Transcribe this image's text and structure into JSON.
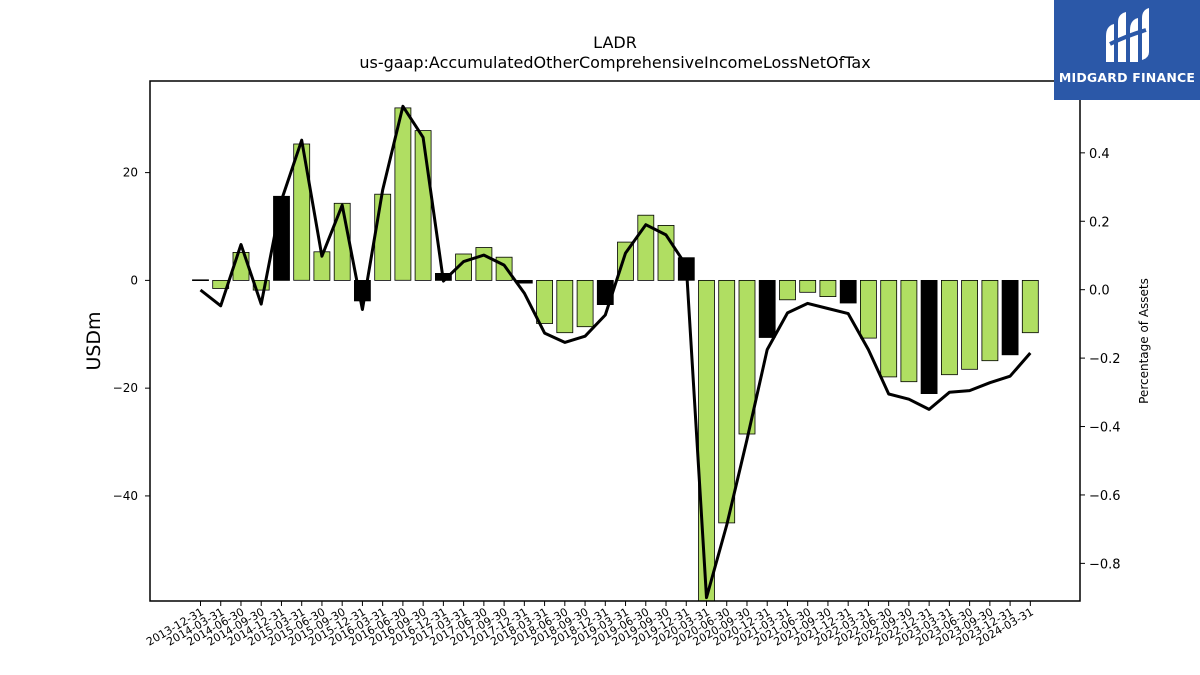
{
  "logo": {
    "text": "MIDGARD FINANCE"
  },
  "chart_data": {
    "type": "bar",
    "title": "LADR",
    "subtitle": "us-gaap:AccumulatedOtherComprehensiveIncomeLossNetOfTax",
    "ylabel": "USDm",
    "y2label": "Percentage of Assets",
    "ylim": [
      -59.5,
      37.0
    ],
    "y2lim": [
      -0.91,
      0.61
    ],
    "yticks": [
      20,
      0,
      -20,
      -40
    ],
    "y2ticks": [
      0.4,
      0.2,
      0.0,
      -0.2,
      -0.4,
      -0.6,
      -0.8
    ],
    "ytick_labels": [
      "20",
      "0",
      "−20",
      "−40"
    ],
    "y2tick_labels": [
      "0.4",
      "0.2",
      "0.0",
      "−0.2",
      "−0.4",
      "−0.6",
      "−0.8"
    ],
    "categories": [
      "2013-12-31",
      "2014-03-31",
      "2014-06-30",
      "2014-09-30",
      "2014-12-31",
      "2015-03-31",
      "2015-06-30",
      "2015-09-30",
      "2015-12-31",
      "2016-03-31",
      "2016-06-30",
      "2016-09-30",
      "2016-12-31",
      "2017-03-31",
      "2017-06-30",
      "2017-09-30",
      "2017-12-31",
      "2018-03-31",
      "2018-06-30",
      "2018-09-30",
      "2018-12-31",
      "2019-03-31",
      "2019-06-30",
      "2019-09-30",
      "2019-12-31",
      "2020-03-31",
      "2020-06-30",
      "2020-09-30",
      "2020-12-31",
      "2021-03-31",
      "2021-06-30",
      "2021-09-30",
      "2021-12-31",
      "2022-03-31",
      "2022-06-30",
      "2022-09-30",
      "2022-12-31",
      "2023-03-31",
      "2023-06-30",
      "2023-09-30",
      "2023-12-31",
      "2024-03-31"
    ],
    "series": [
      {
        "values": [
          0.1,
          -1.5,
          5.2,
          -1.8,
          15.6,
          25.3,
          5.3,
          14.3,
          -3.8,
          16.0,
          32.0,
          27.8,
          1.3,
          4.9,
          6.1,
          4.3,
          -0.5,
          -8.0,
          -9.7,
          -8.6,
          -4.5,
          7.1,
          12.1,
          10.2,
          4.2,
          -60.0,
          -45.0,
          -28.5,
          -10.6,
          -3.6,
          -2.2,
          -3.0,
          -4.2,
          -10.7,
          -17.9,
          -18.8,
          -21.0,
          -17.5,
          -16.5,
          -14.9,
          -13.8,
          -9.7
        ],
        "colors": [
          "#000000",
          "#b0de62",
          "#b0de62",
          "#b0de62",
          "#000000",
          "#b0de62",
          "#b0de62",
          "#b0de62",
          "#000000",
          "#b0de62",
          "#b0de62",
          "#b0de62",
          "#000000",
          "#b0de62",
          "#b0de62",
          "#b0de62",
          "#000000",
          "#b0de62",
          "#b0de62",
          "#b0de62",
          "#000000",
          "#b0de62",
          "#b0de62",
          "#b0de62",
          "#000000",
          "#b0de62",
          "#b0de62",
          "#b0de62",
          "#000000",
          "#b0de62",
          "#b0de62",
          "#b0de62",
          "#000000",
          "#b0de62",
          "#b0de62",
          "#b0de62",
          "#000000",
          "#b0de62",
          "#b0de62",
          "#b0de62",
          "#000000",
          "#b0de62"
        ]
      },
      {
        "axis": "right",
        "type": "line",
        "values": [
          -0.001,
          -0.047,
          0.132,
          -0.042,
          0.262,
          0.437,
          0.098,
          0.247,
          -0.058,
          0.292,
          0.536,
          0.445,
          0.025,
          0.082,
          0.101,
          0.072,
          -0.01,
          -0.127,
          -0.154,
          -0.136,
          -0.074,
          0.107,
          0.19,
          0.16,
          0.07,
          -0.9,
          -0.688,
          -0.438,
          -0.175,
          -0.068,
          -0.04,
          -0.055,
          -0.07,
          -0.175,
          -0.305,
          -0.32,
          -0.35,
          -0.3,
          -0.295,
          -0.272,
          -0.253,
          -0.185
        ]
      }
    ],
    "colors": {
      "bar": "#b0de62",
      "bar_year_end": "#000000",
      "line": "#000000"
    },
    "grid": false,
    "legend": "none"
  }
}
